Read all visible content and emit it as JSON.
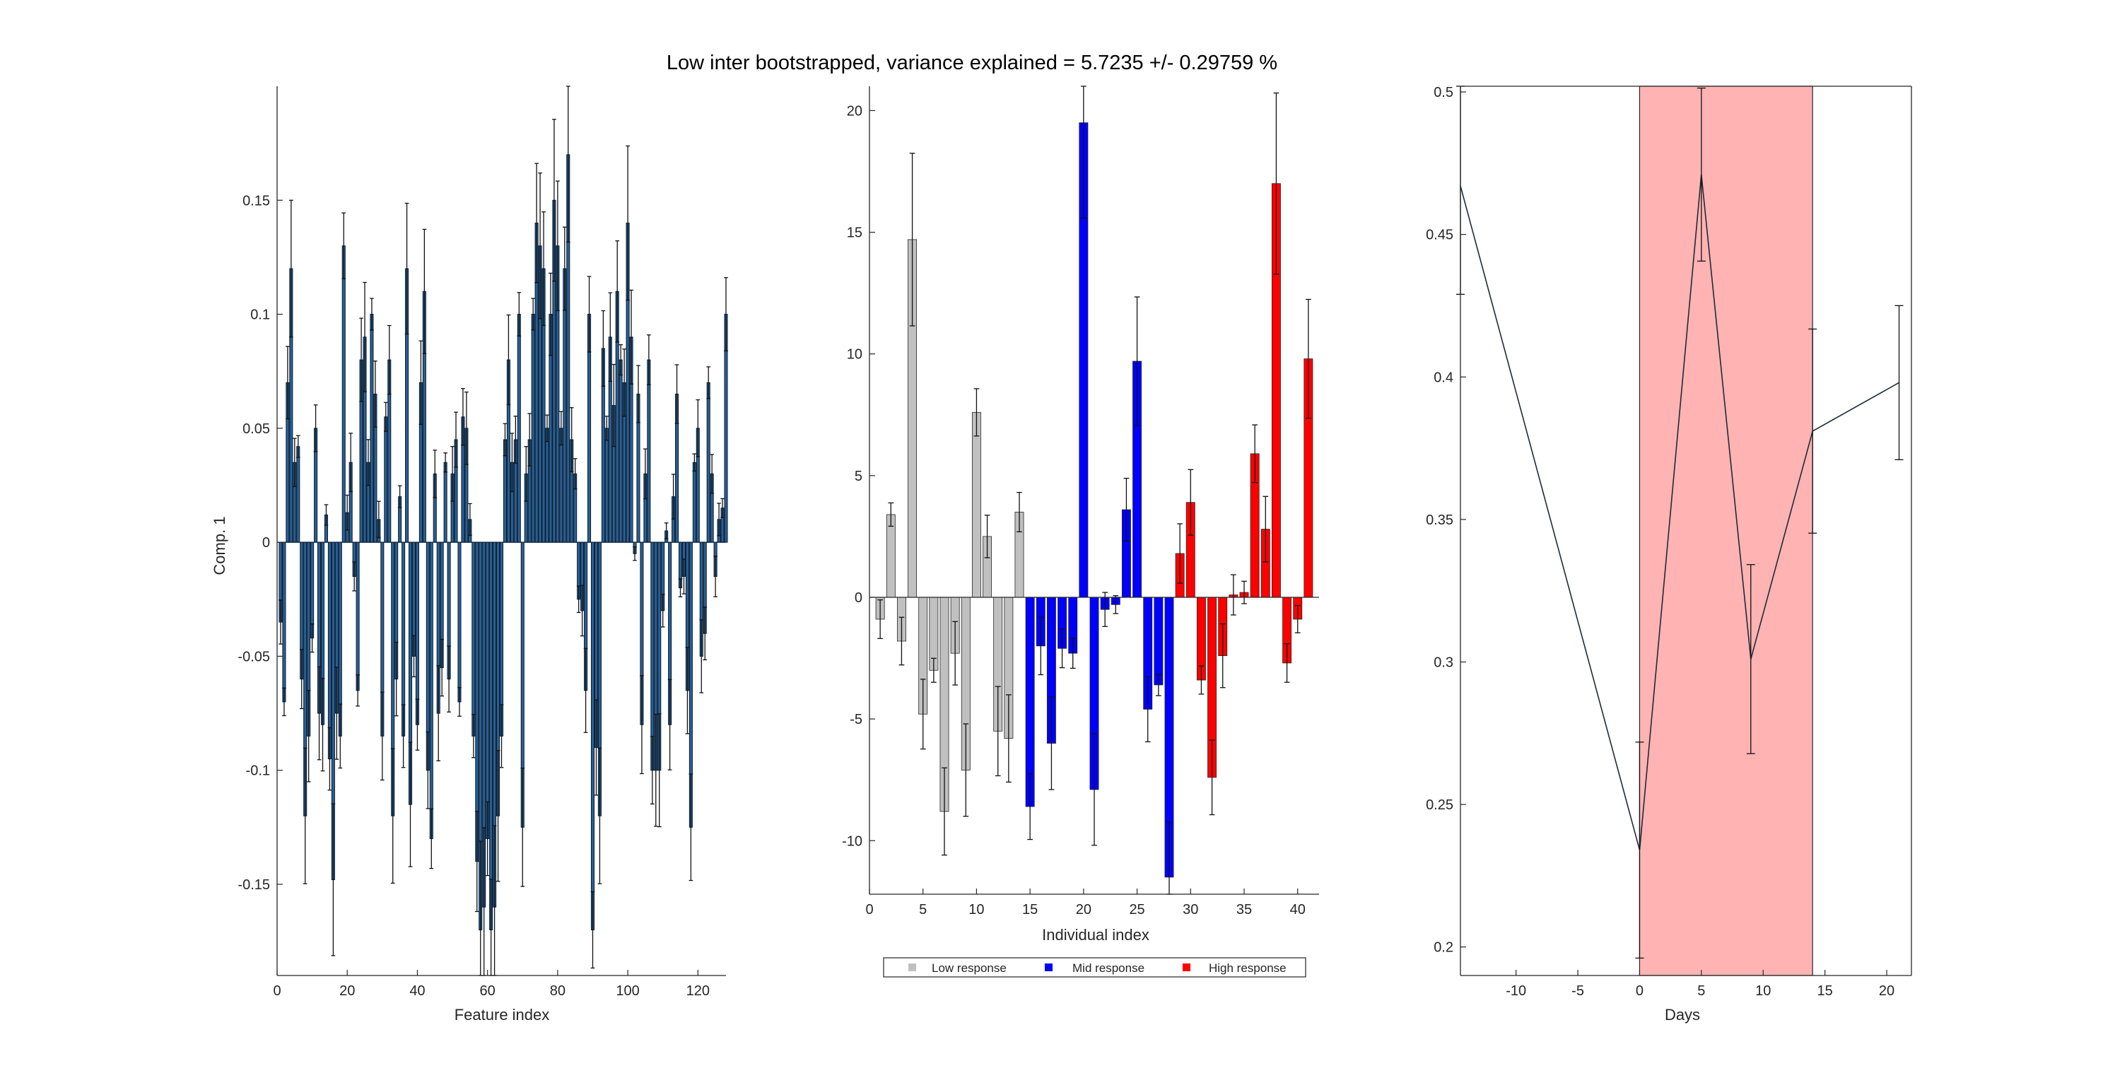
{
  "title": "Low inter bootstrapped, variance explained = 5.7235 +/- 0.29759 %",
  "colors": {
    "feature_bar": "#2b5f8f",
    "feature_edge": "#0a1e36",
    "error_bar": "#111111",
    "low": "#c0c0c0",
    "mid": "#0000ff",
    "high": "#ff0000",
    "shade": "#ffb3b3",
    "line": "#1c2b3a"
  },
  "chart_data": [
    {
      "type": "bar",
      "xlabel": "Feature index",
      "ylabel": "Comp. 1",
      "xlim": [
        0,
        128
      ],
      "ylim": [
        -0.19,
        0.2
      ],
      "xticks": [
        0,
        20,
        40,
        60,
        80,
        100,
        120
      ],
      "yticks": [
        -0.15,
        -0.1,
        -0.05,
        0,
        0.05,
        0.1,
        0.15
      ],
      "ytick_labels": [
        "-0.15",
        "-0.1",
        "-0.05",
        "0",
        "0.05",
        "0.1",
        "0.15"
      ],
      "x": [
        1,
        2,
        3,
        4,
        5,
        6,
        7,
        8,
        9,
        10,
        11,
        12,
        13,
        14,
        15,
        16,
        17,
        18,
        19,
        20,
        21,
        22,
        23,
        24,
        25,
        26,
        27,
        28,
        29,
        30,
        31,
        32,
        33,
        34,
        35,
        36,
        37,
        38,
        39,
        40,
        41,
        42,
        43,
        44,
        45,
        46,
        47,
        48,
        49,
        50,
        51,
        52,
        53,
        54,
        55,
        56,
        57,
        58,
        59,
        60,
        61,
        62,
        63,
        64,
        65,
        66,
        67,
        68,
        69,
        70,
        71,
        72,
        73,
        74,
        75,
        76,
        77,
        78,
        79,
        80,
        81,
        82,
        83,
        84,
        85,
        86,
        87,
        88,
        89,
        90,
        91,
        92,
        93,
        94,
        95,
        96,
        97,
        98,
        99,
        100,
        101,
        102,
        103,
        104,
        105,
        106,
        107,
        108,
        109,
        110,
        111,
        112,
        113,
        114,
        115,
        116,
        117,
        118,
        119,
        120,
        121,
        122,
        123,
        124,
        125,
        126,
        127,
        128
      ],
      "values": [
        -0.035,
        -0.07,
        0.07,
        0.12,
        0.035,
        0.042,
        -0.06,
        -0.12,
        -0.085,
        -0.042,
        0.05,
        -0.075,
        -0.08,
        0.012,
        -0.095,
        -0.148,
        -0.075,
        -0.085,
        0.13,
        0.013,
        0.035,
        -0.015,
        -0.065,
        0.08,
        0.09,
        0.035,
        0.1,
        0.065,
        0.01,
        -0.085,
        0.055,
        0.08,
        -0.12,
        -0.06,
        0.02,
        -0.085,
        0.12,
        -0.115,
        -0.05,
        -0.08,
        0.07,
        0.11,
        -0.1,
        -0.13,
        0.03,
        -0.075,
        -0.055,
        0.035,
        -0.06,
        0.03,
        0.045,
        -0.07,
        0.055,
        0.05,
        0.01,
        -0.085,
        -0.14,
        -0.17,
        -0.16,
        -0.13,
        -0.17,
        -0.16,
        -0.12,
        -0.085,
        0.045,
        0.08,
        0.035,
        0.045,
        0.1,
        -0.125,
        0.03,
        0.045,
        0.1,
        0.14,
        0.13,
        0.12,
        0.05,
        0.1,
        0.15,
        0.13,
        0.05,
        0.12,
        0.17,
        0.045,
        0.03,
        -0.025,
        -0.03,
        -0.065,
        0.1,
        -0.17,
        -0.09,
        -0.12,
        0.085,
        0.05,
        0.09,
        0.06,
        0.11,
        0.08,
        0.07,
        0.14,
        0.09,
        -0.005,
        0.065,
        -0.08,
        0.03,
        0.08,
        -0.1,
        -0.1,
        -0.1,
        -0.03,
        0.005,
        -0.08,
        0.02,
        0.065,
        -0.02,
        -0.015,
        -0.065,
        -0.125,
        0.035,
        0.05,
        -0.05,
        -0.04,
        0.07,
        0.03,
        -0.015,
        0.01,
        0.015,
        0.1
      ]
    },
    {
      "type": "bar",
      "xlabel": "Individual index",
      "ylabel": "",
      "xlim": [
        0,
        42
      ],
      "ylim": [
        -12.2,
        21
      ],
      "xticks": [
        0,
        5,
        10,
        15,
        20,
        25,
        30,
        35,
        40
      ],
      "yticks": [
        -10,
        -5,
        0,
        5,
        10,
        15,
        20
      ],
      "ytick_labels": [
        "-10",
        "-5",
        "0",
        "5",
        "10",
        "15",
        "20"
      ],
      "legend": [
        "Low response",
        "Mid response",
        "High response"
      ],
      "legend_placement": "bottom-outside",
      "x": [
        1,
        2,
        3,
        4,
        5,
        6,
        7,
        8,
        9,
        10,
        11,
        12,
        13,
        14,
        15,
        16,
        17,
        18,
        19,
        20,
        21,
        22,
        23,
        24,
        25,
        26,
        27,
        28,
        29,
        30,
        31,
        32,
        33,
        34,
        35,
        36,
        37,
        38,
        39,
        40,
        41
      ],
      "values": [
        -0.9,
        3.4,
        -1.8,
        14.7,
        -4.8,
        -3.0,
        -8.8,
        -2.3,
        -7.1,
        7.6,
        2.5,
        -5.5,
        -5.8,
        3.5,
        -8.6,
        -2.0,
        -6.0,
        -2.1,
        -2.3,
        19.5,
        -7.9,
        -0.5,
        -0.3,
        3.6,
        9.7,
        -4.6,
        -3.6,
        -11.5,
        1.8,
        3.9,
        -3.4,
        -7.4,
        -2.4,
        0.1,
        0.2,
        5.9,
        2.8,
        17.0,
        -2.7,
        -0.9,
        9.8
      ],
      "groups": [
        "Low response",
        "Low response",
        "Low response",
        "Low response",
        "Low response",
        "Low response",
        "Low response",
        "Low response",
        "Low response",
        "Low response",
        "Low response",
        "Low response",
        "Low response",
        "Low response",
        "Mid response",
        "Mid response",
        "Mid response",
        "Mid response",
        "Mid response",
        "Mid response",
        "Mid response",
        "Mid response",
        "Mid response",
        "Mid response",
        "Mid response",
        "Mid response",
        "Mid response",
        "Mid response",
        "High response",
        "High response",
        "High response",
        "High response",
        "High response",
        "High response",
        "High response",
        "High response",
        "High response",
        "High response",
        "High response",
        "High response",
        "High response"
      ]
    },
    {
      "type": "line",
      "xlabel": "Days",
      "ylabel": "",
      "xlim": [
        -14.5,
        22
      ],
      "ylim": [
        0.19,
        0.502
      ],
      "xticks": [
        -10,
        -5,
        0,
        5,
        10,
        15,
        20
      ],
      "yticks": [
        0.2,
        0.25,
        0.3,
        0.35,
        0.4,
        0.45,
        0.5
      ],
      "ytick_labels": [
        "0.2",
        "0.25",
        "0.3",
        "0.35",
        "0.4",
        "0.45",
        "0.5"
      ],
      "shaded_region": [
        0,
        14
      ],
      "x": [
        -14.5,
        0,
        5,
        9,
        14,
        21
      ],
      "y": [
        0.467,
        0.234,
        0.471,
        0.301,
        0.381,
        0.398
      ]
    }
  ]
}
